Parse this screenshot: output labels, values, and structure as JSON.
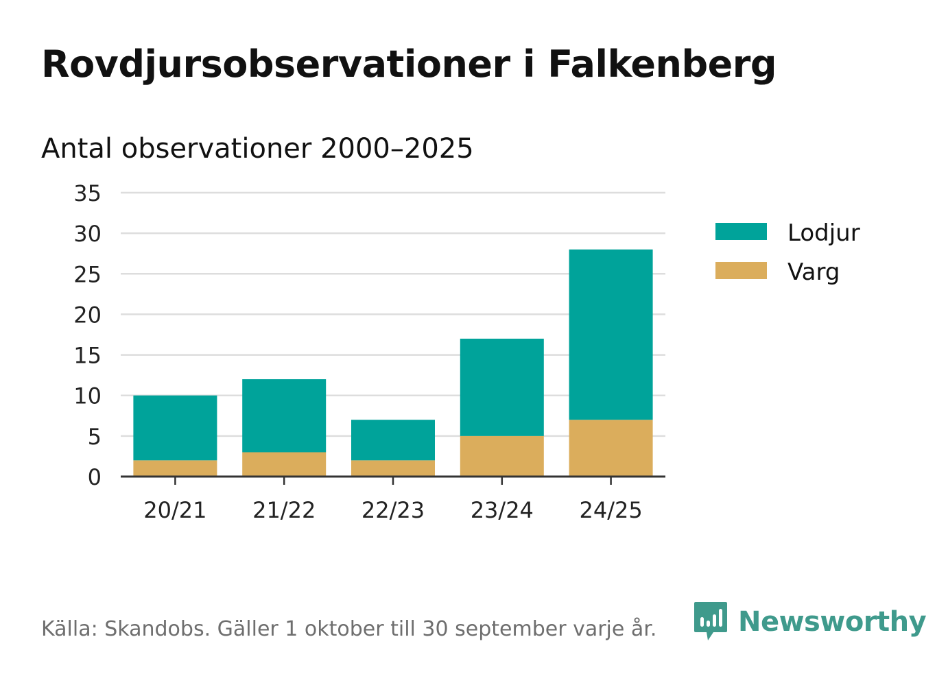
{
  "title": "Rovdjursobservationer i Falkenberg",
  "subtitle": "Antal observationer 2000–2025",
  "source": "Källa: Skandobs. Gäller 1 oktober till 30 september varje år.",
  "brand": {
    "name": "Newsworthy",
    "icon": "newsworthy-logo-icon",
    "color": "#3f9a8c"
  },
  "chart_data": {
    "type": "bar",
    "stacked": true,
    "categories": [
      "20/21",
      "21/22",
      "22/23",
      "23/24",
      "24/25"
    ],
    "series": [
      {
        "name": "Varg",
        "color": "#dbad5c",
        "values": [
          2,
          3,
          2,
          5,
          7
        ]
      },
      {
        "name": "Lodjur",
        "color": "#00a39a",
        "values": [
          8,
          9,
          5,
          12,
          21
        ]
      }
    ],
    "legend_order": [
      "Lodjur",
      "Varg"
    ],
    "legend_position": "right",
    "ylim": [
      0,
      35
    ],
    "yticks": [
      0,
      5,
      10,
      15,
      20,
      25,
      30,
      35
    ],
    "grid": true,
    "xlabel": "",
    "ylabel": ""
  }
}
